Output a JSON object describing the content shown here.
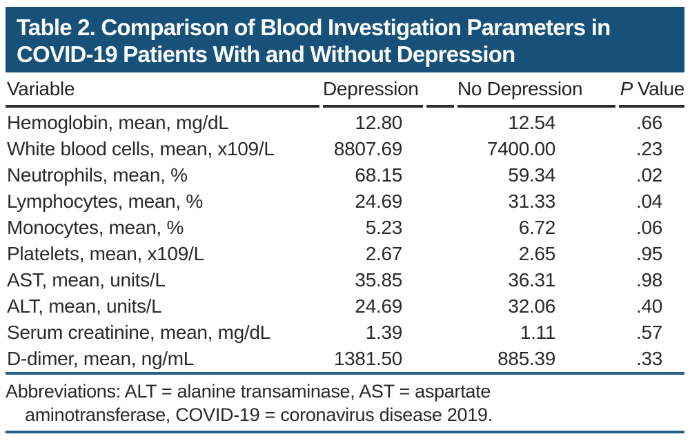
{
  "title": {
    "line1": "Table 2. Comparison of Blood Investigation Parameters in",
    "line2": "COVID-19 Patients With and Without Depression"
  },
  "table": {
    "headers": {
      "variable": "Variable",
      "depression": "Depression",
      "no_depression": "No Depression",
      "p_italic": "P",
      "p_rest": "Value"
    },
    "rows": [
      {
        "variable": "Hemoglobin, mean, mg/dL",
        "depression": "12.80",
        "no_depression": "12.54",
        "p_value": ".66"
      },
      {
        "variable": "White blood cells, mean, x109/L",
        "depression": "8807.69",
        "no_depression": "7400.00",
        "p_value": ".23"
      },
      {
        "variable": "Neutrophils, mean, %",
        "depression": "68.15",
        "no_depression": "59.34",
        "p_value": ".02"
      },
      {
        "variable": "Lymphocytes, mean, %",
        "depression": "24.69",
        "no_depression": "31.33",
        "p_value": ".04"
      },
      {
        "variable": "Monocytes, mean, %",
        "depression": "5.23",
        "no_depression": "6.72",
        "p_value": ".06"
      },
      {
        "variable": "Platelets, mean, x109/L",
        "depression": "2.67",
        "no_depression": "2.65",
        "p_value": ".95"
      },
      {
        "variable": "AST, mean, units/L",
        "depression": "35.85",
        "no_depression": "36.31",
        "p_value": ".98"
      },
      {
        "variable": "ALT, mean, units/L",
        "depression": "24.69",
        "no_depression": "32.06",
        "p_value": ".40"
      },
      {
        "variable": "Serum creatinine, mean, mg/dL",
        "depression": "1.39",
        "no_depression": "1.11",
        "p_value": ".57"
      },
      {
        "variable": "D-dimer, mean, ng/mL",
        "depression": "1381.50",
        "no_depression": "885.39",
        "p_value": ".33"
      }
    ]
  },
  "footnote": {
    "line1": "Abbreviations: ALT = alanine transaminase, AST = aspartate",
    "line2": "aminotransferase, COVID-19 = coronavirus disease 2019."
  },
  "colors": {
    "title_bar_blue": "#175078",
    "rule_blue": "#26618a",
    "header_rule_dark": "#2e2d2b"
  }
}
